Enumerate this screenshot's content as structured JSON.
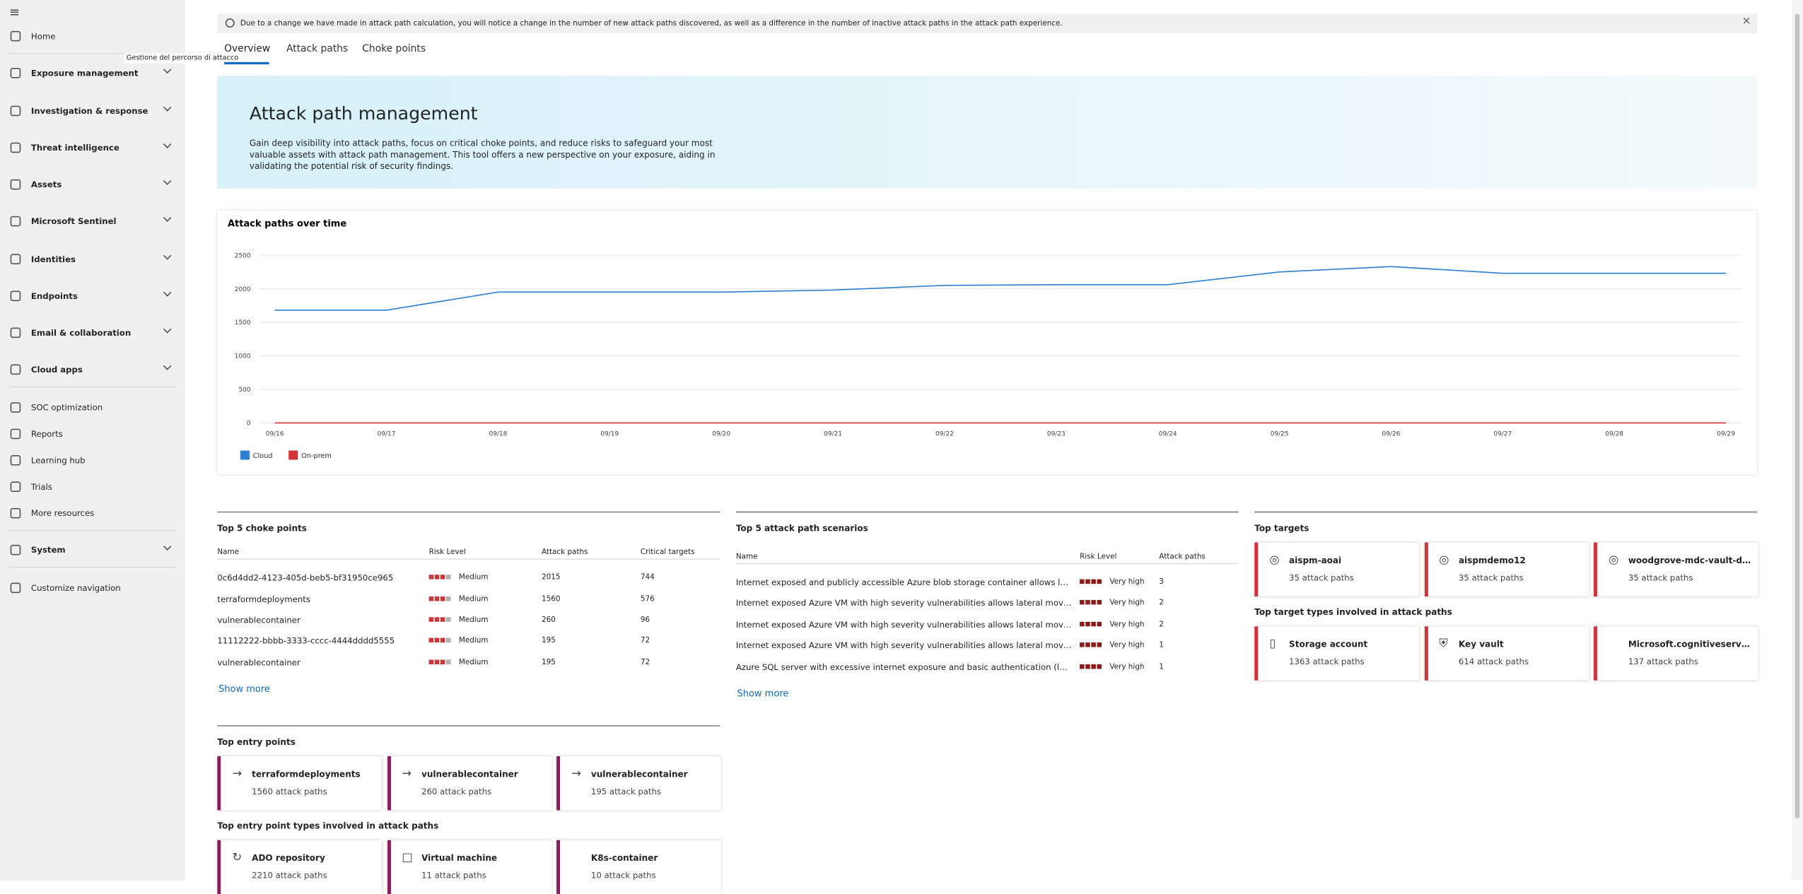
{
  "nav": [
    [
      "Home"
    ],
    [
      "Exposure management",
      "Investigation & response",
      "Threat intelligence",
      "Assets",
      "Microsoft Sentinel",
      "Identities",
      "Endpoints",
      "Email & collaboration",
      "Cloud apps"
    ],
    [
      "SOC optimization",
      "Reports",
      "Learning hub",
      "Trials",
      "More resources"
    ],
    [
      "System"
    ],
    [
      "Customize navigation"
    ]
  ],
  "tooltip": "Gestione del percorso di attacco",
  "banner": "Due to a change we have made in attack path calculation, you will notice a change in the number of new attack paths discovered, as well as a difference in the number of inactive attack paths in the attack path experience.",
  "tabs": [
    "Overview",
    "Attack paths",
    "Choke points"
  ],
  "hero": {
    "title": "Attack path management",
    "description": "Gain deep visibility into attack paths, focus on critical choke points, and reduce risks to safeguard your most valuable assets with attack path management. This tool offers a new perspective on your exposure, aiding in validating the potential risk of security findings."
  },
  "chart": {
    "type": "line",
    "title": "Attack paths over time",
    "categories": [
      "09/16",
      "09/17",
      "09/18",
      "09/19",
      "09/20",
      "09/21",
      "09/22",
      "09/23",
      "09/24",
      "09/25",
      "09/26",
      "09/27",
      "09/28",
      "09/29"
    ],
    "series": [
      {
        "name": "Cloud",
        "color": "#2f7fd1",
        "values": [
          1680,
          1680,
          1950,
          1950,
          1950,
          1980,
          2050,
          2060,
          2060,
          2250,
          2330,
          2230,
          2230,
          2230
        ]
      },
      {
        "name": "On-prem",
        "color": "#d13438",
        "values": [
          0,
          0,
          0,
          0,
          0,
          0,
          0,
          0,
          0,
          0,
          0,
          0,
          0,
          0
        ]
      }
    ],
    "ylim": [
      0,
      2500
    ],
    "yticks": [
      0,
      500,
      1000,
      1500,
      2000,
      2500
    ],
    "grid": true
  },
  "choke_points": {
    "title": "Top 5 choke points",
    "columns": [
      "Name",
      "Risk Level",
      "Attack paths",
      "Critical targets"
    ],
    "rows": [
      [
        "0c6d4dd2-4123-405d-beb5-bf31950ce965",
        "Medium",
        2015,
        744
      ],
      [
        "terraformdeployments",
        "Medium",
        1560,
        576
      ],
      [
        "vulnerablecontainer",
        "Medium",
        260,
        96
      ],
      [
        "11112222-bbbb-3333-cccc-4444dddd5555",
        "Medium",
        195,
        72
      ],
      [
        "vulnerablecontainer",
        "Medium",
        195,
        72
      ]
    ],
    "show_more": "Show more"
  },
  "scenarios": {
    "title": "Top 5 attack path scenarios",
    "columns": [
      "Name",
      "Risk Level",
      "Attack paths"
    ],
    "rows": [
      [
        "Internet exposed and publicly accessible Azure blob storage container allows lateral movement",
        "Very high",
        3
      ],
      [
        "Internet exposed Azure VM with high severity vulnerabilities allows lateral movement",
        "Very high",
        2
      ],
      [
        "Internet exposed Azure VM with high severity vulnerabilities allows lateral movement",
        "Very high",
        2
      ],
      [
        "Internet exposed Azure VM with high severity vulnerabilities allows lateral movement",
        "Very high",
        1
      ],
      [
        "Azure SQL server with excessive internet exposure and basic authentication (login)",
        "Very high",
        1
      ]
    ],
    "show_more": "Show more"
  },
  "top_targets": {
    "title": "Top targets",
    "items": [
      {
        "name": "aispm-aoai",
        "paths": "35 attack paths"
      },
      {
        "name": "aispmdemo12",
        "paths": "35 attack paths"
      },
      {
        "name": "woodgrove-mdc-vault-demo",
        "paths": "35 attack paths"
      }
    ]
  },
  "target_types": {
    "title": "Top target types involved in attack paths",
    "items": [
      {
        "name": "Storage account",
        "paths": "1363 attack paths"
      },
      {
        "name": "Key vault",
        "paths": "614 attack paths"
      },
      {
        "name": "Microsoft.cognitiveservices",
        "paths": "137 attack paths"
      }
    ]
  },
  "entry_points": {
    "title": "Top entry points",
    "items": [
      {
        "name": "terraformdeployments",
        "paths": "1560 attack paths"
      },
      {
        "name": "vulnerablecontainer",
        "paths": "260 attack paths"
      },
      {
        "name": "vulnerablecontainer",
        "paths": "195 attack paths"
      }
    ]
  },
  "entry_types": {
    "title": "Top entry point types involved in attack paths",
    "items": [
      {
        "name": "ADO repository",
        "paths": "2210 attack paths"
      },
      {
        "name": "Virtual machine",
        "paths": "11 attack paths"
      },
      {
        "name": "K8s-container",
        "paths": "10 attack paths"
      }
    ]
  }
}
